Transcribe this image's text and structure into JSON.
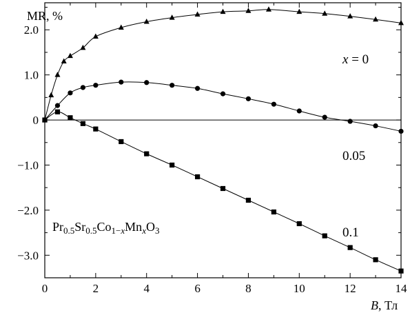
{
  "chart_data": {
    "type": "scatter",
    "ylabel": "MR, %",
    "xlabel_var": "B",
    "xlabel_unit": ", Тл",
    "xlim": [
      0,
      14
    ],
    "ylim": [
      -3.5,
      2.6
    ],
    "xticks": [
      0,
      2,
      4,
      6,
      8,
      10,
      12,
      14
    ],
    "xtick_labels": [
      "0",
      "2",
      "4",
      "6",
      "8",
      "10",
      "12",
      "14"
    ],
    "yticks": [
      2.0,
      1.0,
      0,
      -1.0,
      -2.0,
      -3.0
    ],
    "ytick_labels": [
      "2.0",
      "1.0",
      "0",
      "−1.0",
      "−2.0",
      "−3.0"
    ],
    "grid": false,
    "zero_line": true,
    "formula": {
      "parts": [
        {
          "t": "Pr",
          "s": "n"
        },
        {
          "t": "0.5",
          "s": "sub"
        },
        {
          "t": "Sr",
          "s": "n"
        },
        {
          "t": "0.5",
          "s": "sub"
        },
        {
          "t": "Co",
          "s": "n"
        },
        {
          "t": "1−",
          "s": "sub"
        },
        {
          "t": "x",
          "s": "subi"
        },
        {
          "t": "Mn",
          "s": "n"
        },
        {
          "t": "x",
          "s": "subi"
        },
        {
          "t": "O",
          "s": "n"
        },
        {
          "t": "3",
          "s": "sub"
        }
      ]
    },
    "series": [
      {
        "label_var": "x",
        "label_rest": " = 0",
        "marker": "triangle",
        "x": [
          0,
          0.25,
          0.5,
          0.75,
          1,
          1.5,
          2,
          3,
          4,
          5,
          6,
          7,
          8,
          8.8,
          10,
          11,
          12,
          13,
          14
        ],
        "y": [
          0,
          0.55,
          1.0,
          1.3,
          1.42,
          1.6,
          1.85,
          2.05,
          2.18,
          2.27,
          2.34,
          2.4,
          2.42,
          2.45,
          2.4,
          2.36,
          2.3,
          2.23,
          2.15
        ]
      },
      {
        "label": "0.05",
        "marker": "circle",
        "x": [
          0,
          0.5,
          1,
          1.5,
          2,
          3,
          4,
          5,
          6,
          7,
          8,
          9,
          10,
          11,
          12,
          13,
          14
        ],
        "y": [
          0,
          0.32,
          0.6,
          0.72,
          0.77,
          0.84,
          0.83,
          0.77,
          0.7,
          0.58,
          0.47,
          0.35,
          0.2,
          0.06,
          -0.03,
          -0.13,
          -0.25
        ]
      },
      {
        "label": "0.1",
        "marker": "square",
        "x": [
          0,
          0.5,
          1,
          1.5,
          2,
          3,
          4,
          5,
          6,
          7,
          8,
          9,
          10,
          11,
          12,
          13,
          14
        ],
        "y": [
          0,
          0.18,
          0.05,
          -0.08,
          -0.2,
          -0.48,
          -0.75,
          -1.0,
          -1.26,
          -1.52,
          -1.78,
          -2.04,
          -2.3,
          -2.57,
          -2.83,
          -3.1,
          -3.35
        ]
      }
    ]
  }
}
